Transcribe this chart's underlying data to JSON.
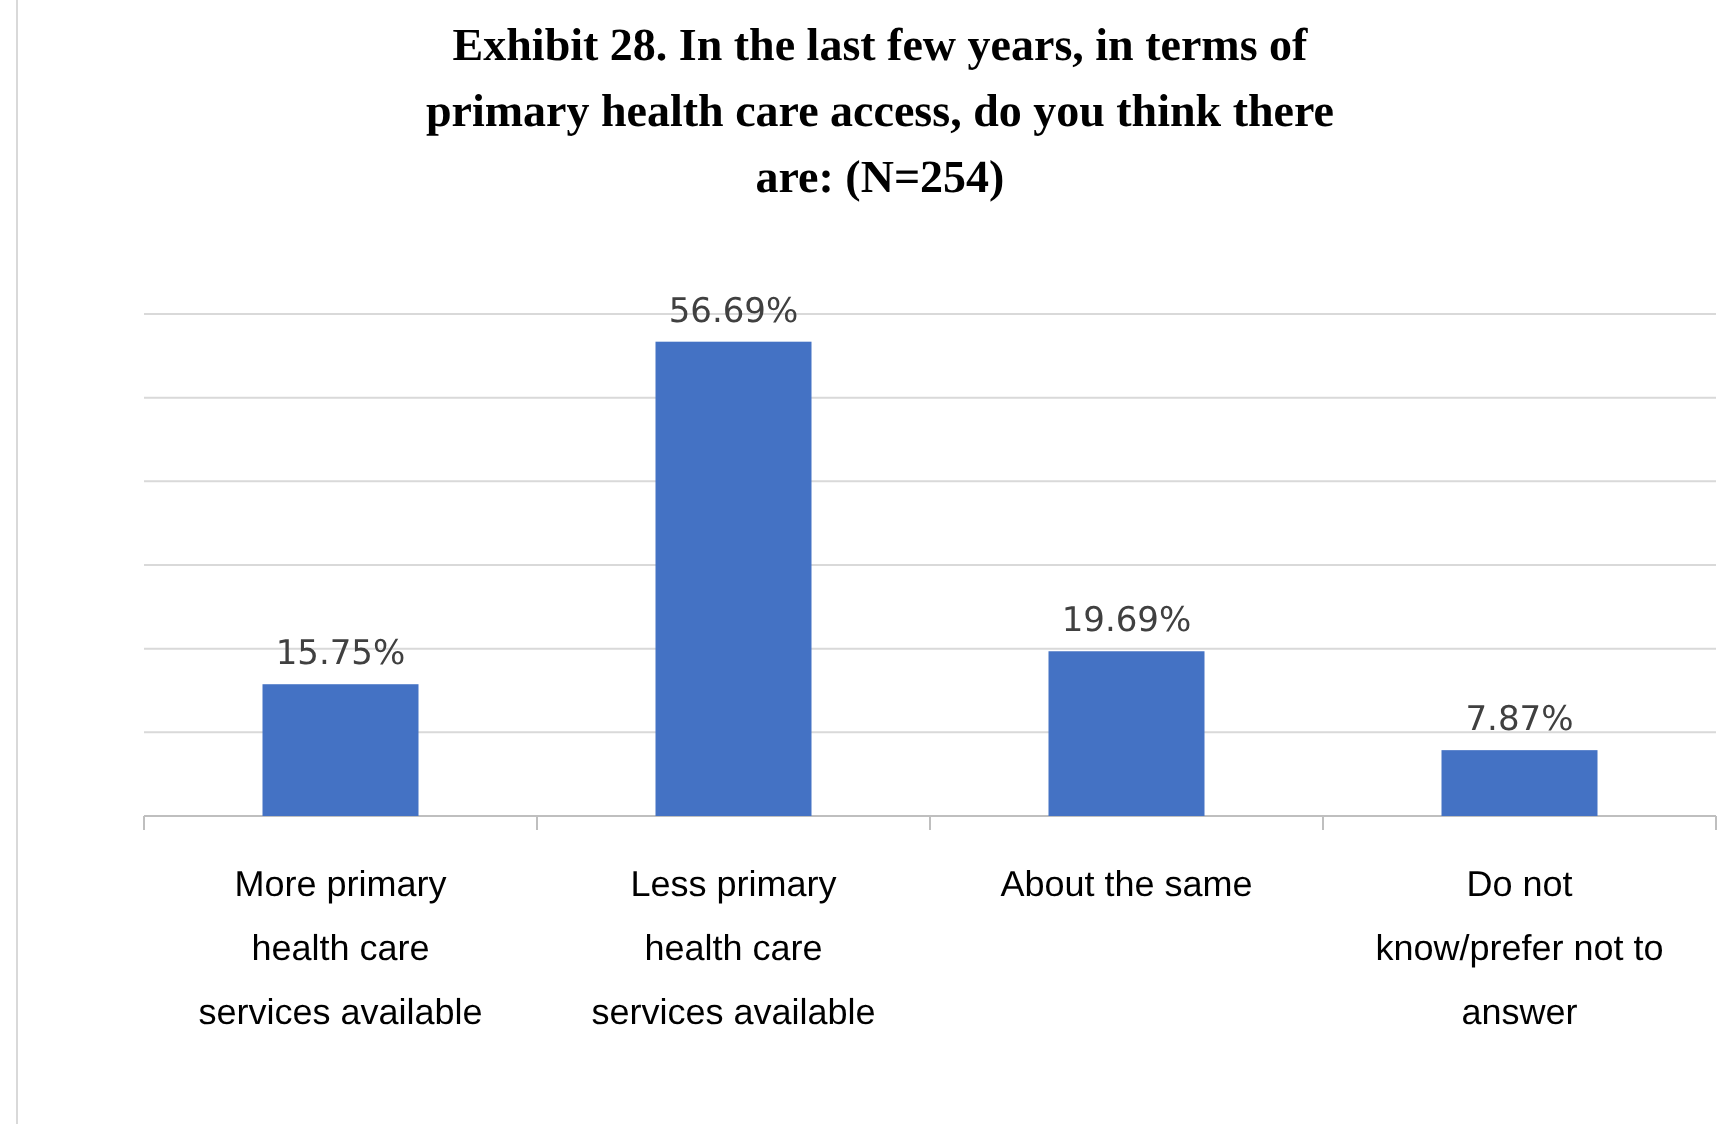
{
  "chart_data": {
    "type": "bar",
    "title": "Exhibit 28. In the last few years, in terms of primary health care access, do you think there are: (N=254)",
    "categories": [
      "More primary health care services available",
      "Less primary health care services available",
      "About the same",
      "Do not know/prefer not to answer"
    ],
    "values": [
      15.75,
      56.69,
      19.69,
      7.87
    ],
    "value_labels": [
      "15.75%",
      "56.69%",
      "19.69%",
      "7.87%"
    ],
    "color": "#4472c4",
    "ylim": [
      0,
      60
    ],
    "yticks": [
      {
        "value": 0,
        "label": null
      },
      {
        "value": 10,
        "label": null
      },
      {
        "value": 20,
        "label": null
      },
      {
        "value": 30,
        "label": null
      },
      {
        "value": 40,
        "label": null
      },
      {
        "value": 50,
        "label": null
      },
      {
        "value": 60,
        "label": null
      }
    ],
    "grid": "y",
    "tick_labels": "x"
  }
}
